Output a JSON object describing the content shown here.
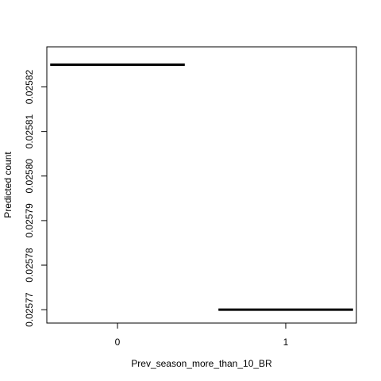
{
  "chart_data": {
    "type": "line",
    "xlabel": "Prev_season_more_than_10_BR",
    "ylabel": "Predicted count",
    "categories": [
      "0",
      "1"
    ],
    "series": [
      {
        "values": [
          0.025825,
          0.02577
        ]
      }
    ],
    "ylim": [
      0.025767,
      0.025829
    ],
    "yticks": [
      "0.02577",
      "0.02578",
      "0.02579",
      "0.02580",
      "0.02581",
      "0.02582"
    ],
    "ytick_values": [
      0.02577,
      0.02578,
      0.02579,
      0.0258,
      0.02581,
      0.02582
    ],
    "grid": false,
    "legend": "none",
    "line_color": "#000000"
  }
}
